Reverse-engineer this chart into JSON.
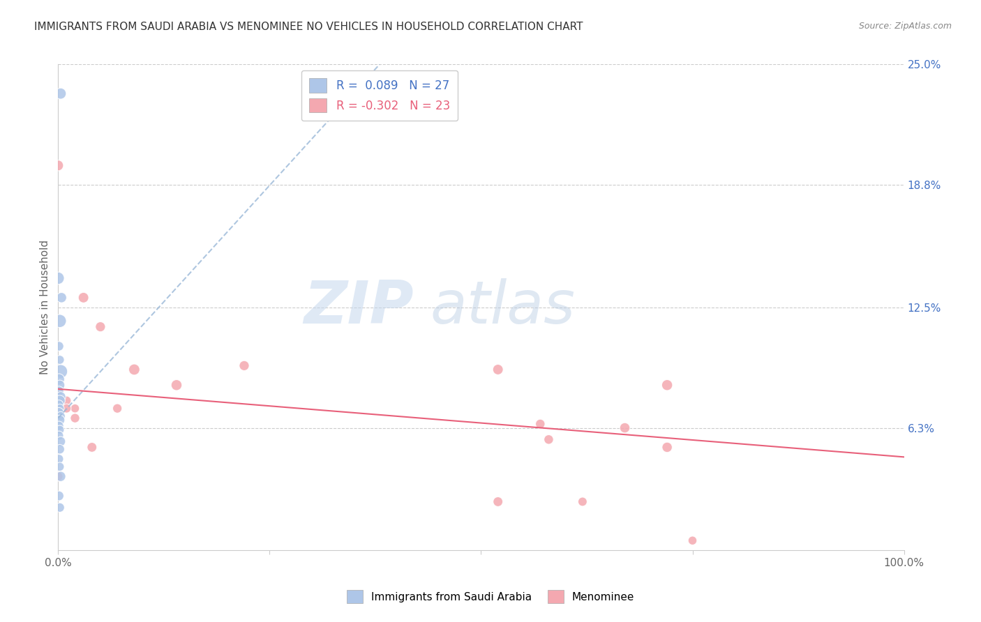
{
  "title": "IMMIGRANTS FROM SAUDI ARABIA VS MENOMINEE NO VEHICLES IN HOUSEHOLD CORRELATION CHART",
  "source": "Source: ZipAtlas.com",
  "ylabel": "No Vehicles in Household",
  "xlim": [
    0,
    1.0
  ],
  "ylim": [
    0,
    0.25
  ],
  "x_ticks": [
    0.0,
    0.25,
    0.5,
    0.75,
    1.0
  ],
  "x_tick_labels": [
    "0.0%",
    "",
    "",
    "",
    "100.0%"
  ],
  "y_tick_labels_right": [
    "25.0%",
    "18.8%",
    "12.5%",
    "6.3%",
    ""
  ],
  "y_ticks_right": [
    0.25,
    0.188,
    0.125,
    0.063,
    0.0
  ],
  "blue_R": 0.089,
  "blue_N": 27,
  "pink_R": -0.302,
  "pink_N": 23,
  "blue_color": "#aec6e8",
  "pink_color": "#f4a8b0",
  "blue_line_color": "#9ab8d8",
  "pink_line_color": "#e8607a",
  "blue_scatter": {
    "x": [
      0.003,
      0.0,
      0.004,
      0.002,
      0.001,
      0.002,
      0.003,
      0.001,
      0.002,
      0.001,
      0.003,
      0.002,
      0.001,
      0.002,
      0.001,
      0.003,
      0.002,
      0.001,
      0.002,
      0.001,
      0.003,
      0.002,
      0.001,
      0.002,
      0.003,
      0.001,
      0.002
    ],
    "y": [
      0.235,
      0.14,
      0.13,
      0.118,
      0.105,
      0.098,
      0.092,
      0.088,
      0.085,
      0.082,
      0.079,
      0.077,
      0.075,
      0.073,
      0.071,
      0.069,
      0.067,
      0.064,
      0.062,
      0.059,
      0.056,
      0.052,
      0.047,
      0.043,
      0.038,
      0.028,
      0.022
    ],
    "sizes": [
      130,
      160,
      110,
      180,
      95,
      85,
      200,
      130,
      105,
      95,
      110,
      120,
      85,
      80,
      95,
      88,
      105,
      92,
      82,
      88,
      100,
      95,
      88,
      82,
      108,
      100,
      92
    ]
  },
  "pink_scatter": {
    "x": [
      0.0,
      0.03,
      0.05,
      0.09,
      0.14,
      0.22,
      0.52,
      0.57,
      0.67,
      0.72,
      0.0,
      0.01,
      0.02,
      0.02,
      0.04,
      0.07,
      0.58,
      0.72,
      0.0,
      0.01,
      0.62,
      0.75,
      0.52
    ],
    "y": [
      0.198,
      0.13,
      0.115,
      0.093,
      0.085,
      0.095,
      0.093,
      0.065,
      0.063,
      0.085,
      0.082,
      0.077,
      0.073,
      0.068,
      0.053,
      0.073,
      0.057,
      0.053,
      0.038,
      0.073,
      0.025,
      0.005,
      0.025
    ],
    "sizes": [
      120,
      115,
      105,
      130,
      125,
      105,
      115,
      95,
      110,
      125,
      92,
      87,
      82,
      92,
      100,
      92,
      95,
      110,
      92,
      87,
      87,
      82,
      100
    ]
  },
  "blue_trend_x": [
    0.0,
    0.38
  ],
  "blue_trend_y": [
    0.068,
    0.25
  ],
  "pink_trend_x": [
    0.0,
    1.0
  ],
  "pink_trend_y": [
    0.083,
    0.048
  ],
  "watermark_zip": "ZIP",
  "watermark_atlas": "atlas",
  "background_color": "#ffffff",
  "grid_color": "#cccccc"
}
